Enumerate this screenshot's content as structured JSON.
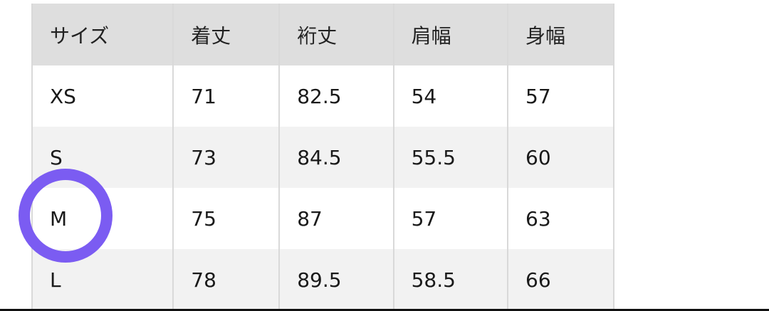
{
  "table": {
    "headers": [
      "サイズ",
      "着丈",
      "裄丈",
      "肩幅",
      "身幅"
    ],
    "rows": [
      [
        "XS",
        "71",
        "82.5",
        "54",
        "57"
      ],
      [
        "S",
        "73",
        "84.5",
        "55.5",
        "60"
      ],
      [
        "M",
        "75",
        "87",
        "57",
        "63"
      ],
      [
        "L",
        "78",
        "89.5",
        "58.5",
        "66"
      ]
    ]
  },
  "highlight": {
    "row": "M",
    "color": "#7b5cf2",
    "shape": "circle"
  }
}
